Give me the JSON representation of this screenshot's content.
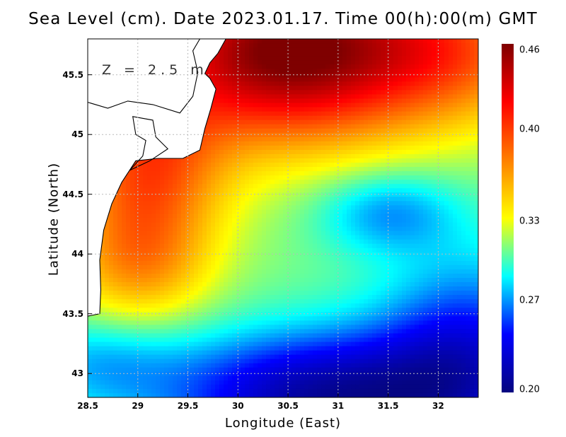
{
  "title": "Sea Level (cm). Date 2023.01.17. Time 00(h):00(m) GMT",
  "depth_label": "Z = 2.5 m",
  "xaxis": {
    "label": "Longitude (East)",
    "range": [
      28.5,
      32.4
    ],
    "ticks": [
      {
        "value": 28.5,
        "label": "28.5"
      },
      {
        "value": 29,
        "label": "29"
      },
      {
        "value": 29.5,
        "label": "29.5"
      },
      {
        "value": 30,
        "label": "30"
      },
      {
        "value": 30.5,
        "label": "30.5"
      },
      {
        "value": 31,
        "label": "31"
      },
      {
        "value": 31.5,
        "label": "31.5"
      },
      {
        "value": 32,
        "label": "32"
      }
    ]
  },
  "yaxis": {
    "label": "Latitude (North)",
    "range": [
      42.8,
      45.8
    ],
    "ticks": [
      {
        "value": 43,
        "label": "43"
      },
      {
        "value": 43.5,
        "label": "43.5"
      },
      {
        "value": 44,
        "label": "44"
      },
      {
        "value": 44.5,
        "label": "44.5"
      },
      {
        "value": 45,
        "label": "45"
      },
      {
        "value": 45.5,
        "label": "45.5"
      }
    ]
  },
  "colorbar": {
    "min": 0.2,
    "max": 0.465,
    "ticks": [
      {
        "value": 0.46,
        "label": "0.46"
      },
      {
        "value": 0.4,
        "label": "0.40"
      },
      {
        "value": 0.33,
        "label": "0.33"
      },
      {
        "value": 0.27,
        "label": "0.27"
      },
      {
        "value": 0.2,
        "label": "0.20"
      }
    ],
    "colors": [
      "#05057f",
      "#0000ff",
      "#00ffff",
      "#ffff00",
      "#ff7f00",
      "#ff0000",
      "#7f0000"
    ]
  },
  "land_color": "#ffffff",
  "coast_color": "#000000",
  "grid_color": "#bbbbbb",
  "field": {
    "base": 0.31,
    "features": [
      {
        "name": "northern-high",
        "lon": 30.5,
        "lat": 45.7,
        "amp": 0.16,
        "rlon": 1.4,
        "rlat": 0.75
      },
      {
        "name": "western-coastal-band",
        "lon": 29.1,
        "lat": 44.7,
        "amp": 0.08,
        "rlon": 0.75,
        "rlat": 0.7
      },
      {
        "name": "southwest-ridge",
        "lon": 29.0,
        "lat": 43.9,
        "amp": 0.05,
        "rlon": 0.7,
        "rlat": 0.5
      },
      {
        "name": "northeast-high",
        "lon": 32.2,
        "lat": 45.7,
        "amp": 0.06,
        "rlon": 1.0,
        "rlat": 0.6
      },
      {
        "name": "southern-low",
        "lon": 30.9,
        "lat": 42.8,
        "amp": -0.1,
        "rlon": 1.6,
        "rlat": 0.55
      },
      {
        "name": "southeast-low",
        "lon": 32.3,
        "lat": 43.2,
        "amp": -0.06,
        "rlon": 0.9,
        "rlat": 0.8
      },
      {
        "name": "southwest-dip",
        "lon": 28.6,
        "lat": 43.1,
        "amp": -0.03,
        "rlon": 0.8,
        "rlat": 0.4
      },
      {
        "name": "central-eddy-low",
        "lon": 31.5,
        "lat": 44.35,
        "amp": -0.04,
        "rlon": 0.7,
        "rlat": 0.35
      }
    ]
  },
  "coastlines": [
    {
      "name": "dobruja-coast",
      "points": [
        [
          28.5,
          43.48
        ],
        [
          28.62,
          43.5
        ],
        [
          28.63,
          43.7
        ],
        [
          28.62,
          43.95
        ],
        [
          28.66,
          44.2
        ],
        [
          28.74,
          44.42
        ],
        [
          28.84,
          44.6
        ],
        [
          28.98,
          44.78
        ],
        [
          29.2,
          44.8
        ],
        [
          29.45,
          44.8
        ],
        [
          29.62,
          44.87
        ],
        [
          29.67,
          45.05
        ],
        [
          29.73,
          45.22
        ],
        [
          29.78,
          45.38
        ],
        [
          29.72,
          45.47
        ],
        [
          29.67,
          45.51
        ],
        [
          29.72,
          45.6
        ],
        [
          29.8,
          45.68
        ],
        [
          29.88,
          45.8
        ]
      ]
    },
    {
      "name": "danube-delta-channel",
      "points": [
        [
          28.5,
          45.27
        ],
        [
          28.7,
          45.22
        ],
        [
          28.9,
          45.28
        ],
        [
          29.15,
          45.25
        ],
        [
          29.42,
          45.18
        ],
        [
          29.55,
          45.32
        ],
        [
          29.6,
          45.52
        ],
        [
          29.55,
          45.7
        ],
        [
          29.62,
          45.8
        ]
      ]
    },
    {
      "name": "razelm-lagoon",
      "points": [
        [
          28.92,
          44.7
        ],
        [
          29.05,
          44.82
        ],
        [
          29.08,
          44.95
        ],
        [
          28.98,
          45.0
        ],
        [
          28.95,
          45.15
        ],
        [
          29.15,
          45.12
        ],
        [
          29.18,
          44.98
        ],
        [
          29.3,
          44.88
        ],
        [
          29.12,
          44.78
        ],
        [
          28.92,
          44.7
        ]
      ]
    }
  ]
}
